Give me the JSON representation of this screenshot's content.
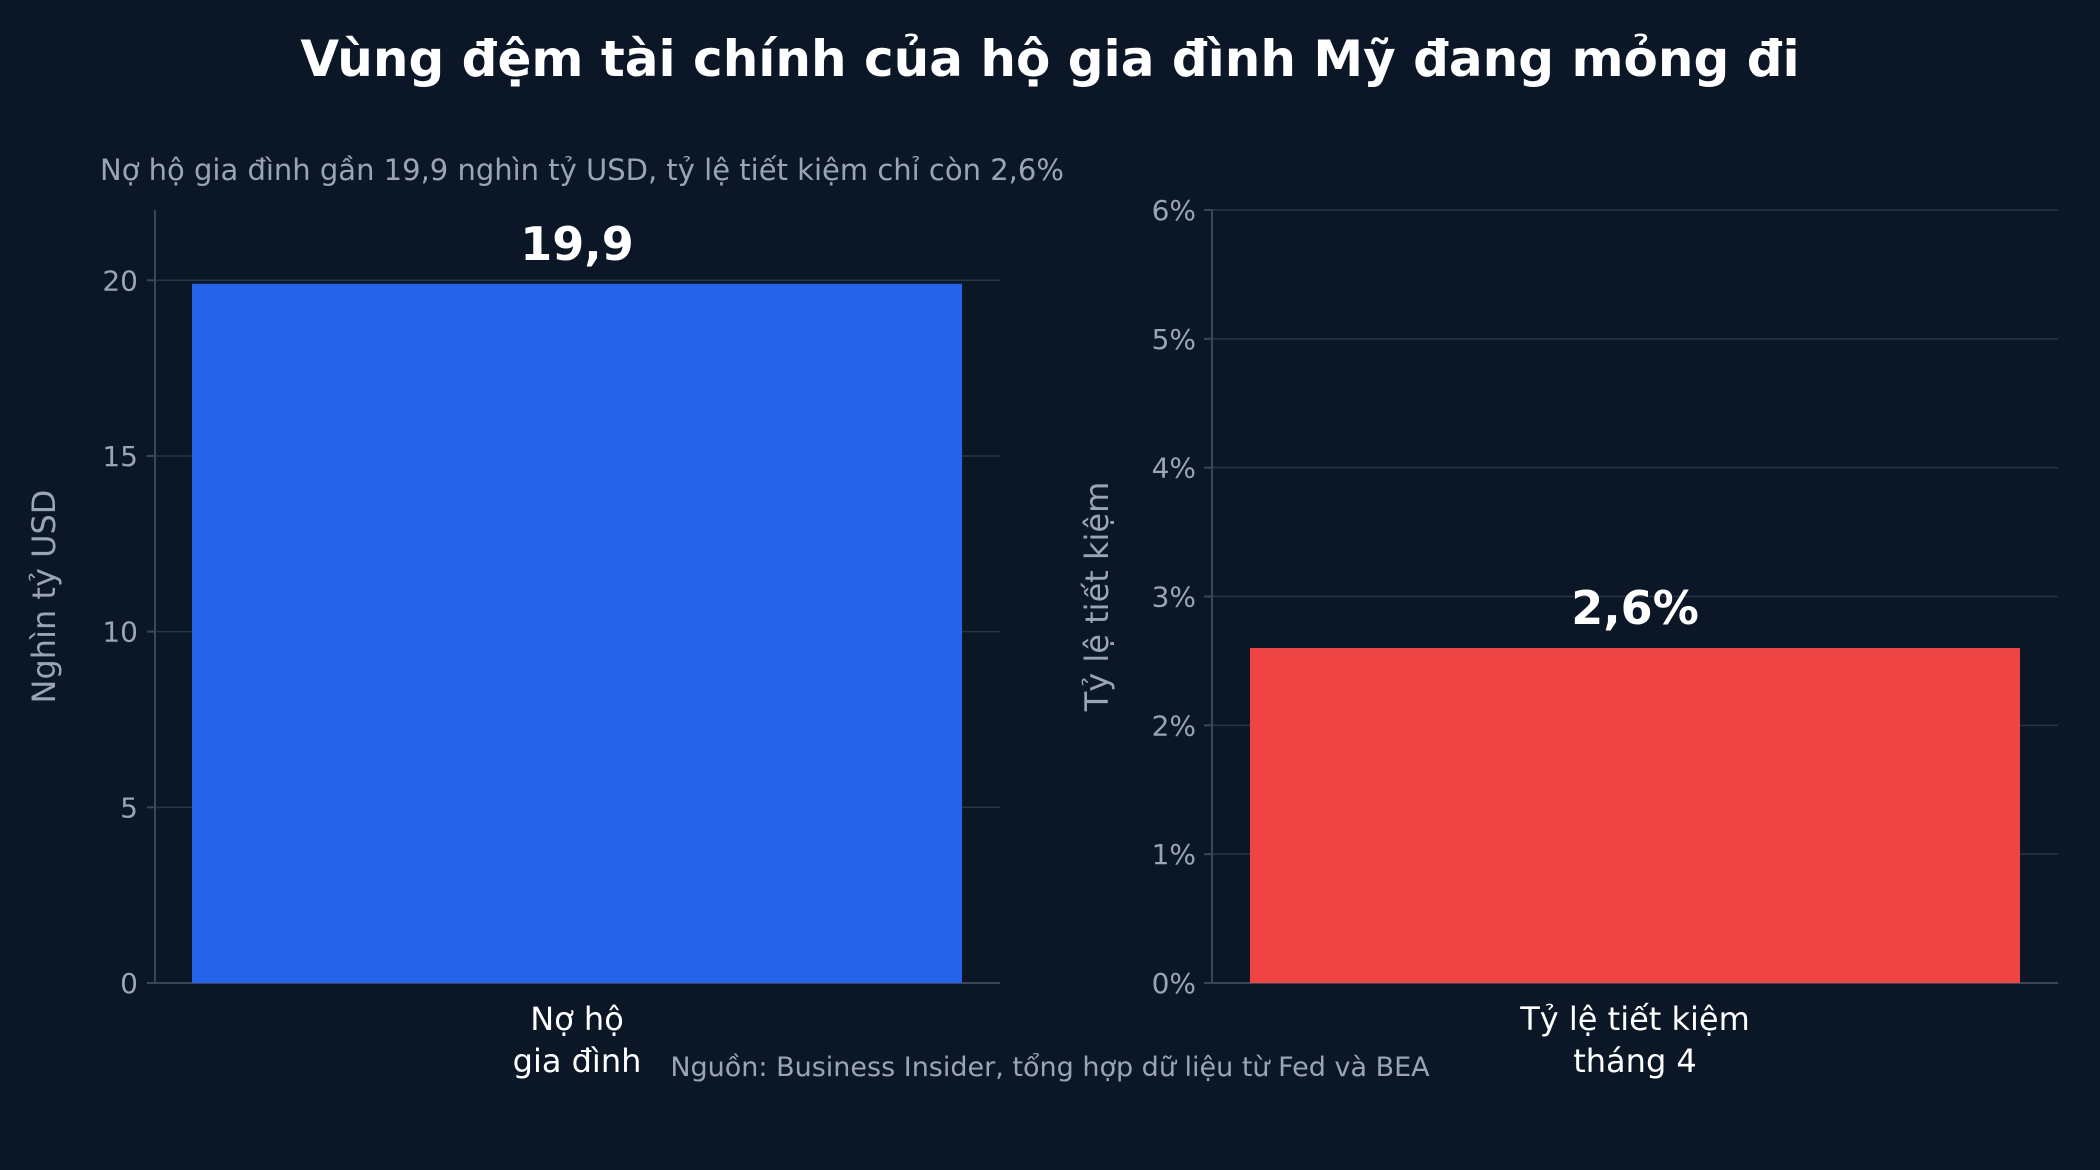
{
  "title": "Vùng đệm tài chính của hộ gia đình Mỹ đang mỏng đi",
  "source": "Nguồn: Business Insider, tổng hợp dữ liệu từ Fed và BEA",
  "chart_data": [
    {
      "type": "bar",
      "subtitle": "Nợ hộ gia đình gần 19,9 nghìn tỷ USD, tỷ lệ tiết kiệm chỉ còn 2,6%",
      "categories": [
        [
          "Nợ hộ",
          "gia đình"
        ]
      ],
      "values": [
        19.9
      ],
      "data_labels": [
        "19,9"
      ],
      "ylabel": "Nghìn tỷ USD",
      "ylim": [
        0,
        22
      ],
      "yticks": [
        0,
        5,
        10,
        15,
        20
      ],
      "ytick_labels": [
        "0",
        "5",
        "10",
        "15",
        "20"
      ],
      "grid": true,
      "color": "#2563eb"
    },
    {
      "type": "bar",
      "categories": [
        [
          "Tỷ lệ tiết kiệm",
          "tháng 4"
        ]
      ],
      "values": [
        2.6
      ],
      "data_labels": [
        "2,6%"
      ],
      "ylabel": "Tỷ lệ tiết kiệm",
      "ylim": [
        0,
        6
      ],
      "yticks": [
        0,
        1,
        2,
        3,
        4,
        5,
        6
      ],
      "ytick_labels": [
        "0%",
        "1%",
        "2%",
        "3%",
        "4%",
        "5%",
        "6%"
      ],
      "grid": true,
      "color": "#ef4444"
    }
  ]
}
